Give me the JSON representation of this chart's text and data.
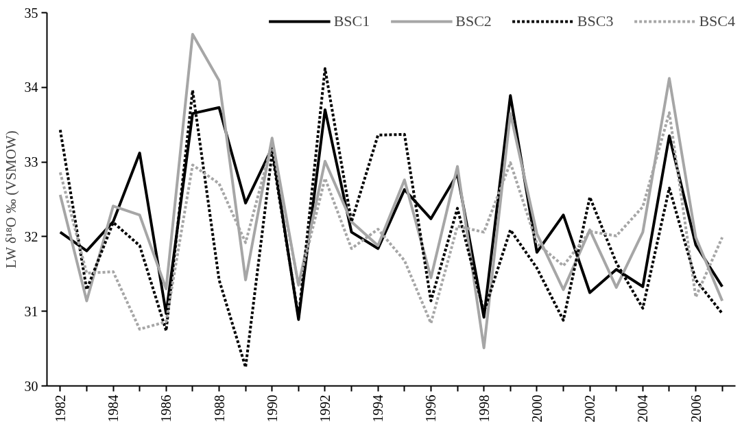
{
  "chart_data": {
    "type": "line",
    "ylabel": "LW δ¹⁸O ‰ (VSMOW)",
    "categories": [
      "1982",
      null,
      "1984",
      null,
      "1986",
      null,
      "1988",
      null,
      "1990",
      null,
      "1992",
      null,
      "1994",
      null,
      "1996",
      null,
      "1998",
      null,
      "2000",
      null,
      "2002",
      null,
      "2004",
      null,
      "2006",
      null
    ],
    "ylim": [
      30,
      35
    ],
    "yticks": [
      30,
      31,
      32,
      33,
      34,
      35
    ],
    "grid": false,
    "legend": "top right",
    "series": [
      {
        "name": "BSC1",
        "color": "#000000",
        "line_style": "solid",
        "values": [
          32.06,
          31.81,
          32.2,
          33.12,
          30.97,
          33.65,
          33.73,
          32.45,
          33.19,
          30.89,
          33.7,
          32.06,
          31.84,
          32.63,
          32.24,
          32.84,
          30.92,
          33.89,
          31.79,
          32.29,
          31.25,
          31.56,
          31.33,
          33.35,
          31.89,
          31.33
        ]
      },
      {
        "name": "BSC2",
        "color": "#a6a6a6",
        "line_style": "solid",
        "values": [
          32.56,
          31.14,
          32.41,
          32.29,
          31.3,
          34.71,
          34.09,
          31.42,
          33.32,
          31.35,
          33.01,
          32.2,
          31.88,
          32.76,
          31.45,
          32.94,
          30.51,
          33.65,
          32.04,
          31.29,
          32.09,
          31.32,
          32.06,
          34.12,
          31.99,
          31.14
        ]
      },
      {
        "name": "BSC3",
        "color": "#000000",
        "line_style": "dotted",
        "values": [
          33.43,
          31.29,
          32.19,
          31.88,
          30.74,
          33.96,
          31.42,
          30.25,
          33.12,
          30.92,
          34.25,
          32.2,
          33.36,
          33.37,
          31.14,
          32.38,
          30.99,
          32.09,
          31.58,
          30.88,
          32.53,
          31.65,
          31.04,
          32.65,
          31.42,
          30.97
        ]
      },
      {
        "name": "BSC4",
        "color": "#a6a6a6",
        "line_style": "dotted",
        "values": [
          32.86,
          31.51,
          31.53,
          30.76,
          30.86,
          32.96,
          32.71,
          31.92,
          33.25,
          31.35,
          32.78,
          31.84,
          32.1,
          31.68,
          30.84,
          32.14,
          32.06,
          32.99,
          31.91,
          31.61,
          32.07,
          32.01,
          32.4,
          33.66,
          31.19,
          31.99
        ]
      }
    ]
  }
}
